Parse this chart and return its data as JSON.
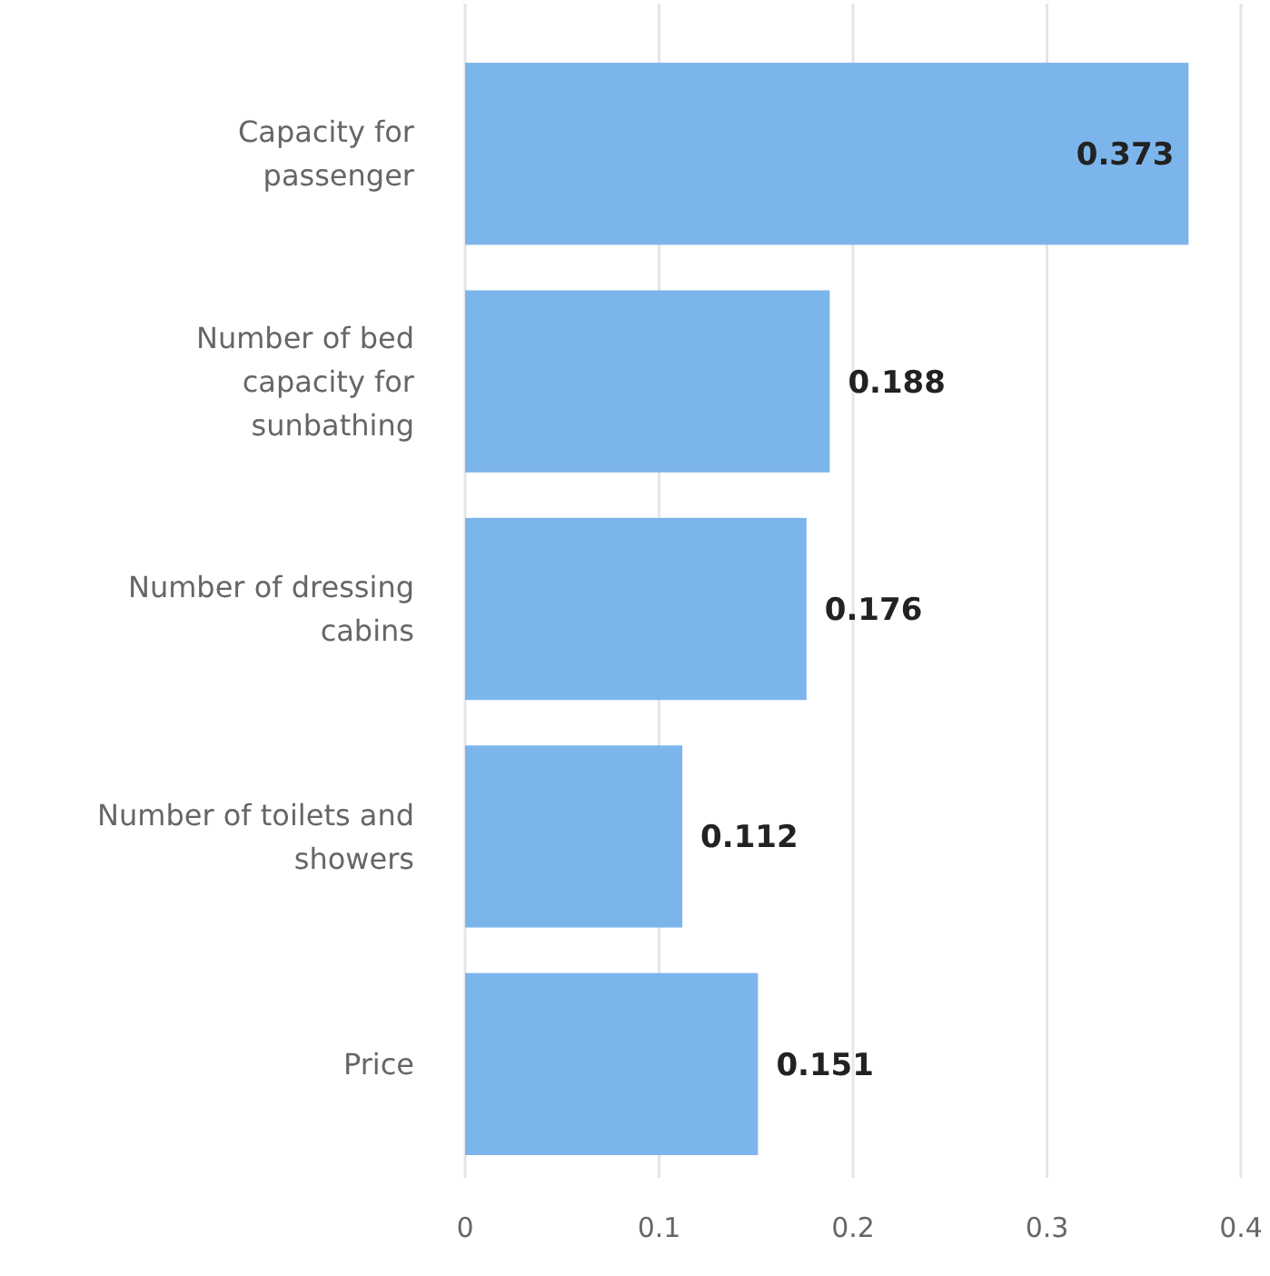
{
  "chart_data": {
    "type": "bar",
    "orientation": "horizontal",
    "categories": [
      "Capacity for passenger",
      "Number of bed capacity for sunbathing",
      "Number of dressing cabins",
      "Number of toilets and showers",
      "Price"
    ],
    "values": [
      0.373,
      0.188,
      0.176,
      0.112,
      0.151
    ],
    "color": "#7cb5ec",
    "xlim": [
      0,
      0.4
    ],
    "xticks": [
      0,
      0.1,
      0.2,
      0.3,
      0.4
    ],
    "grid": "x",
    "data_labels": true
  }
}
